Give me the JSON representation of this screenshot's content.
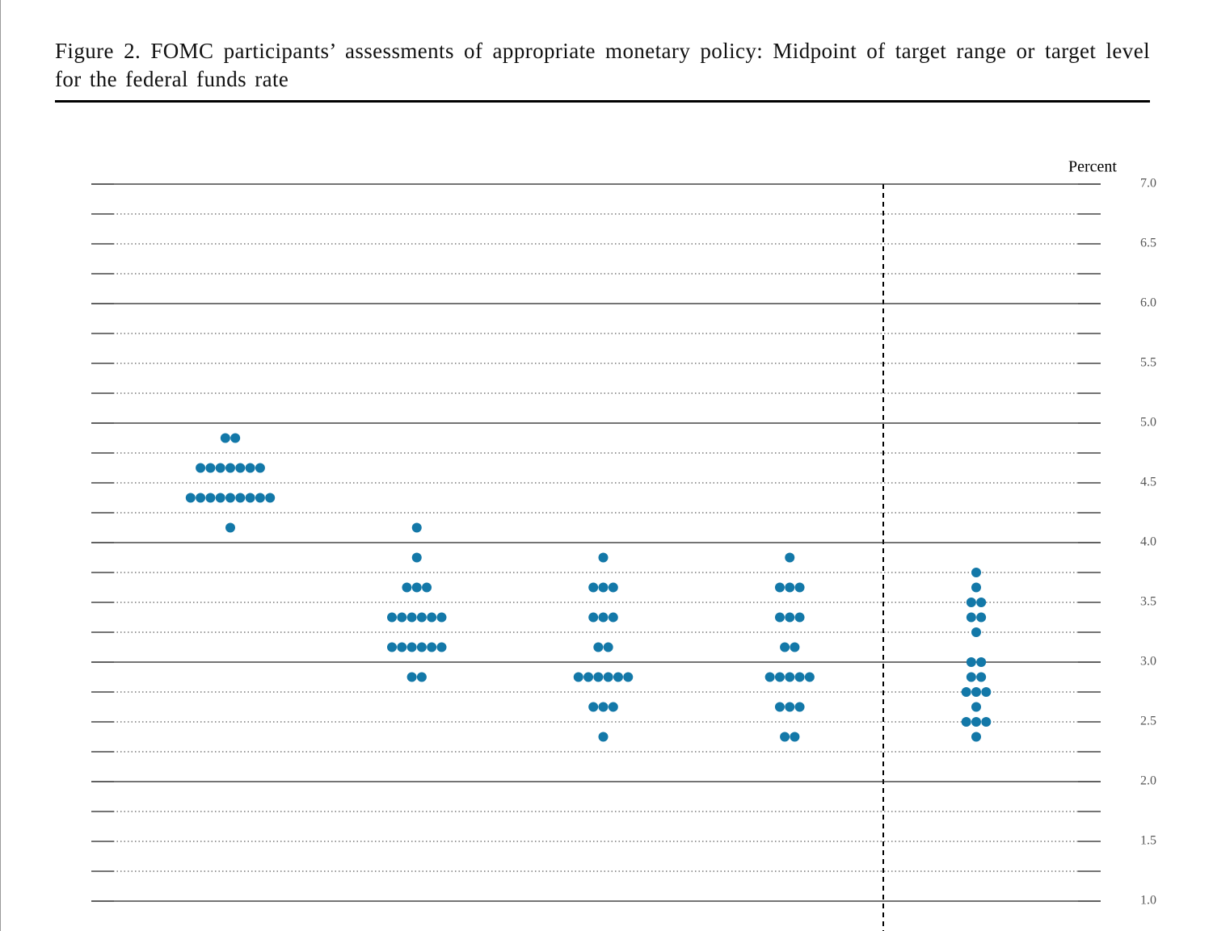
{
  "chart_data": {
    "type": "dot",
    "title": "Figure 2.  FOMC participants’ assessments of appropriate monetary policy:  Midpoint of target range or target level for the federal funds rate",
    "y_label": "Percent",
    "categories": [
      null,
      null,
      null,
      null,
      null
    ],
    "values": [
      [
        4.875,
        4.875,
        4.625,
        4.625,
        4.625,
        4.625,
        4.625,
        4.625,
        4.625,
        4.375,
        4.375,
        4.375,
        4.375,
        4.375,
        4.375,
        4.375,
        4.375,
        4.375,
        4.125
      ],
      [
        4.125,
        3.875,
        3.625,
        3.625,
        3.625,
        3.375,
        3.375,
        3.375,
        3.375,
        3.375,
        3.375,
        3.125,
        3.125,
        3.125,
        3.125,
        3.125,
        3.125,
        2.875,
        2.875
      ],
      [
        3.875,
        3.625,
        3.625,
        3.625,
        3.375,
        3.375,
        3.375,
        3.125,
        3.125,
        2.875,
        2.875,
        2.875,
        2.875,
        2.875,
        2.875,
        2.625,
        2.625,
        2.625,
        2.375
      ],
      [
        3.875,
        3.625,
        3.625,
        3.625,
        3.375,
        3.375,
        3.375,
        3.125,
        3.125,
        2.875,
        2.875,
        2.875,
        2.875,
        2.875,
        2.625,
        2.625,
        2.625,
        2.375,
        2.375
      ],
      [
        3.75,
        3.625,
        3.5,
        3.5,
        3.375,
        3.375,
        3.25,
        3,
        3,
        2.875,
        2.875,
        2.75,
        2.75,
        2.75,
        2.625,
        2.5,
        2.5,
        2.5,
        2.375
      ]
    ],
    "color": "#1378a8",
    "ylim": [
      1,
      7
    ],
    "yticks": [
      {
        "value": 1,
        "label": "1.0"
      },
      {
        "value": 1.5,
        "label": "1.5"
      },
      {
        "value": 2,
        "label": "2.0"
      },
      {
        "value": 2.5,
        "label": "2.5"
      },
      {
        "value": 3,
        "label": "3.0"
      },
      {
        "value": 3.5,
        "label": "3.5"
      },
      {
        "value": 4,
        "label": "4.0"
      },
      {
        "value": 4.5,
        "label": "4.5"
      },
      {
        "value": 5,
        "label": "5.0"
      },
      {
        "value": 5.5,
        "label": "5.5"
      },
      {
        "value": 6,
        "label": "6.0"
      },
      {
        "value": 6.5,
        "label": "6.5"
      },
      {
        "value": 7,
        "label": "7.0"
      }
    ],
    "grid": true
  }
}
